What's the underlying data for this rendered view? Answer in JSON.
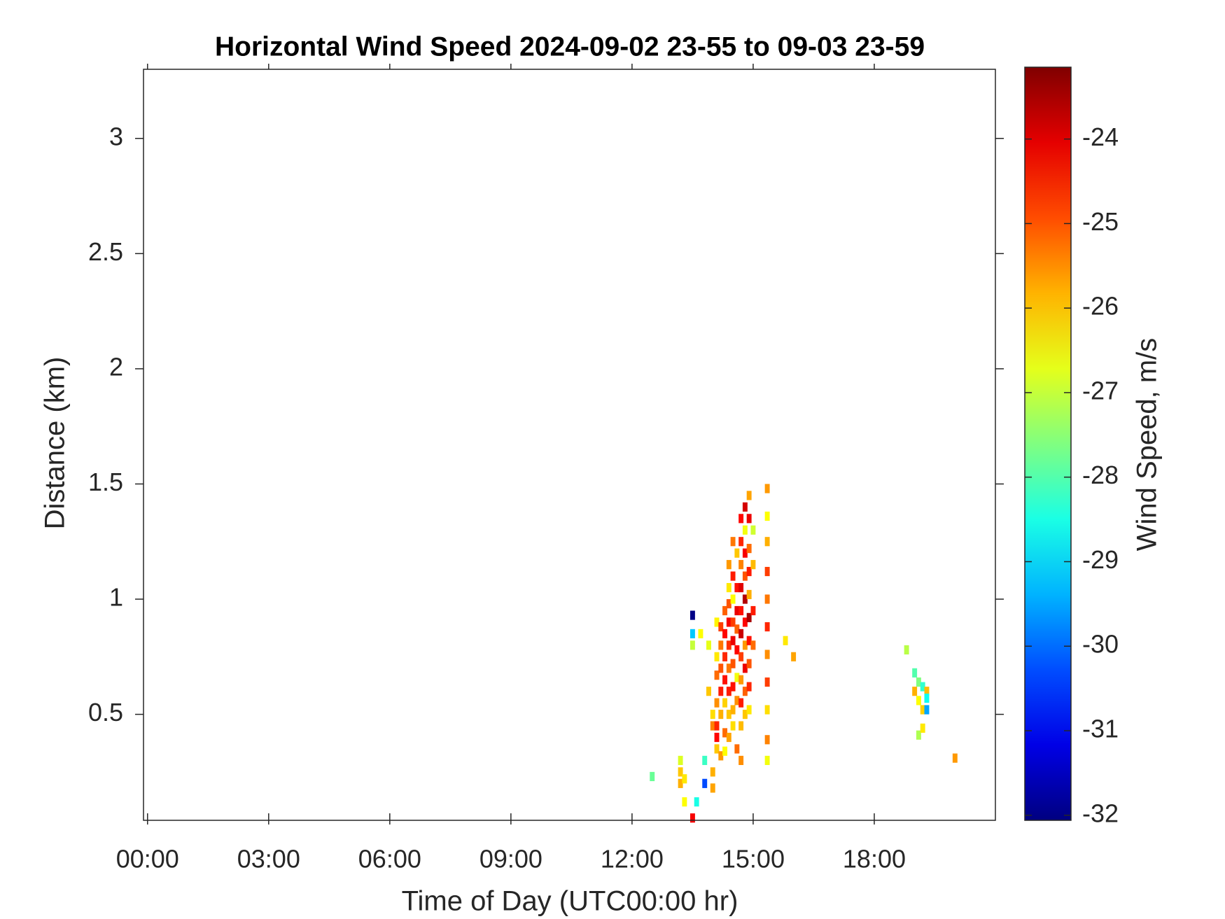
{
  "chart_data": {
    "type": "heatmap",
    "title": "Horizontal Wind Speed 2024-09-02 23-55 to 09-03 23-59",
    "x_label": "Time of Day (UTC00:00 hr)",
    "y_label": "Distance (km)",
    "colorbar_label": "Wind Speed, m/s",
    "colormap": "jet",
    "xlim": [
      -0.1,
      21
    ],
    "ylim": [
      0.04,
      3.3
    ],
    "clim": [
      -32.06,
      -23.15
    ],
    "xticks": [
      {
        "value": 0,
        "label": "00:00"
      },
      {
        "value": 3,
        "label": "03:00"
      },
      {
        "value": 6,
        "label": "06:00"
      },
      {
        "value": 9,
        "label": "09:00"
      },
      {
        "value": 12,
        "label": "12:00"
      },
      {
        "value": 15,
        "label": "15:00"
      },
      {
        "value": 18,
        "label": "18:00"
      }
    ],
    "yticks": [
      0.5,
      1,
      1.5,
      2,
      2.5,
      3
    ],
    "cticks": [
      -32,
      -31,
      -30,
      -29,
      -28,
      -27,
      -26,
      -25,
      -24
    ],
    "x": [
      12.5,
      13.2,
      13.2,
      13.2,
      13.3,
      13.3,
      13.5,
      13.5,
      13.5,
      13.5,
      13.7,
      13.6,
      13.8,
      13.8,
      13.9,
      13.9,
      14.0,
      14.0,
      14.0,
      14.0,
      14.1,
      14.1,
      14.1,
      14.1,
      14.1,
      14.1,
      14.1,
      14.2,
      14.2,
      14.2,
      14.2,
      14.2,
      14.2,
      14.3,
      14.3,
      14.3,
      14.3,
      14.3,
      14.3,
      14.3,
      14.4,
      14.4,
      14.4,
      14.4,
      14.4,
      14.4,
      14.4,
      14.4,
      14.4,
      14.5,
      14.5,
      14.5,
      14.5,
      14.5,
      14.5,
      14.5,
      14.5,
      14.5,
      14.6,
      14.6,
      14.6,
      14.6,
      14.6,
      14.6,
      14.6,
      14.6,
      14.7,
      14.7,
      14.7,
      14.7,
      14.7,
      14.7,
      14.7,
      14.7,
      14.7,
      14.7,
      14.7,
      14.8,
      14.8,
      14.8,
      14.8,
      14.8,
      14.8,
      14.8,
      14.8,
      14.8,
      14.8,
      14.9,
      14.9,
      14.9,
      14.9,
      14.9,
      14.9,
      14.9,
      14.9,
      14.9,
      14.9,
      15.0,
      15.0,
      15.0,
      15.0,
      15.35,
      15.35,
      15.35,
      15.35,
      15.35,
      15.35,
      15.35,
      15.35,
      15.35,
      15.35,
      15.35,
      15.8,
      16.0,
      18.8,
      19.0,
      19.0,
      19.1,
      19.1,
      19.1,
      19.2,
      19.2,
      19.2,
      19.3,
      19.3,
      19.3,
      20.0
    ],
    "y": [
      0.23,
      0.3,
      0.25,
      0.2,
      0.22,
      0.12,
      0.05,
      0.93,
      0.85,
      0.8,
      0.85,
      0.12,
      0.2,
      0.3,
      0.8,
      0.6,
      0.5,
      0.45,
      0.25,
      0.18,
      0.55,
      0.67,
      0.75,
      0.9,
      0.45,
      0.4,
      0.35,
      0.6,
      0.7,
      0.8,
      0.88,
      0.5,
      0.32,
      0.95,
      0.85,
      0.75,
      0.65,
      0.55,
      0.42,
      0.34,
      1.15,
      1.05,
      0.98,
      0.9,
      0.8,
      0.7,
      0.6,
      0.5,
      0.4,
      1.25,
      1.1,
      1.0,
      0.9,
      0.82,
      0.72,
      0.62,
      0.52,
      0.45,
      1.2,
      1.05,
      0.95,
      0.87,
      0.78,
      0.66,
      0.56,
      0.35,
      1.35,
      1.25,
      1.15,
      1.05,
      0.95,
      0.85,
      0.75,
      0.65,
      0.55,
      0.45,
      0.3,
      1.4,
      1.3,
      1.2,
      1.1,
      1.0,
      0.9,
      0.8,
      0.7,
      0.6,
      0.5,
      1.45,
      1.35,
      1.22,
      1.12,
      1.02,
      0.92,
      0.82,
      0.72,
      0.62,
      0.52,
      1.3,
      1.15,
      0.95,
      0.8,
      1.48,
      1.36,
      1.25,
      1.12,
      1.0,
      0.88,
      0.76,
      0.64,
      0.52,
      0.39,
      0.3,
      0.82,
      0.75,
      0.78,
      0.68,
      0.6,
      0.64,
      0.56,
      0.41,
      0.62,
      0.52,
      0.44,
      0.6,
      0.57,
      0.52,
      0.31
    ],
    "values": [
      -27.8,
      -26.8,
      -26.0,
      -25.8,
      -26.3,
      -26.5,
      -24.2,
      -32,
      -29.2,
      -27,
      -26.5,
      -28.5,
      -30.3,
      -28.2,
      -26.7,
      -26,
      -26.2,
      -25.4,
      -25.8,
      -25.7,
      -25.5,
      -25.2,
      -26.3,
      -26.4,
      -24.6,
      -24.3,
      -26,
      -24.5,
      -25,
      -25.3,
      -24.8,
      -25.8,
      -25.6,
      -25.1,
      -24.3,
      -24.6,
      -24.4,
      -26.1,
      -25.2,
      -26.5,
      -25.6,
      -26.3,
      -25,
      -24.2,
      -24.7,
      -25.3,
      -24.5,
      -26,
      -25.7,
      -25.3,
      -24.5,
      -26.5,
      -24.8,
      -24.1,
      -25,
      -24.4,
      -25.8,
      -26.2,
      -26,
      -24.4,
      -24.1,
      -25.1,
      -24.3,
      -26.6,
      -25.5,
      -25.2,
      -24.3,
      -24.6,
      -25.4,
      -24,
      -24.4,
      -23.8,
      -24.8,
      -25.6,
      -24.5,
      -25.9,
      -25.5,
      -23.9,
      -26.6,
      -24.2,
      -25,
      -23.6,
      -24.3,
      -25.6,
      -24.1,
      -25.1,
      -26,
      -25.7,
      -24.1,
      -25.2,
      -24.5,
      -25.8,
      -23.5,
      -24.4,
      -25,
      -24.6,
      -26.3,
      -26.9,
      -25.9,
      -24.5,
      -25.2,
      -25.6,
      -26.5,
      -25.8,
      -24.8,
      -25.3,
      -24.6,
      -25.5,
      -24.8,
      -26.2,
      -25.4,
      -26.6,
      -26.3,
      -25.7,
      -27.1,
      -28,
      -25.8,
      -27.6,
      -26.5,
      -27.2,
      -28.3,
      -26.1,
      -26.3,
      -25.9,
      -28.6,
      -29.5,
      -25.6
    ]
  }
}
